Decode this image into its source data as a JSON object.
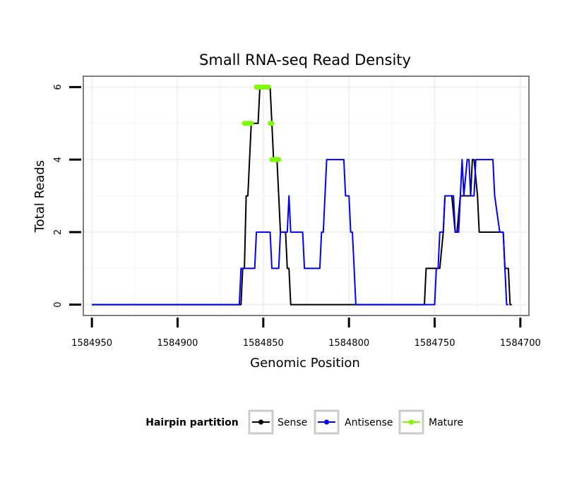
{
  "chart_data": {
    "type": "line",
    "title": "Small RNA-seq Read Density",
    "xlabel": "Genomic Position",
    "ylabel": "Total Reads",
    "x_reversed": true,
    "xlim": [
      1584955,
      1584695
    ],
    "ylim": [
      -0.3,
      6.3
    ],
    "x_ticks": [
      1584950,
      1584900,
      1584850,
      1584800,
      1584750,
      1584700
    ],
    "x_tick_labels": [
      "1584950",
      "1584900",
      "1584850",
      "1584800",
      "1584750",
      "1584700"
    ],
    "y_ticks": [
      0,
      2,
      4,
      6
    ],
    "y_tick_labels": [
      "0",
      "2",
      "4",
      "6"
    ],
    "grid": true,
    "legend": {
      "title": "Hairpin partition",
      "position": "bottom",
      "entries": [
        {
          "label": "Sense",
          "color": "#000000"
        },
        {
          "label": "Antisense",
          "color": "#0000ff"
        },
        {
          "label": "Mature",
          "color": "#7cfc00"
        }
      ]
    },
    "series": [
      {
        "name": "Sense",
        "color": "#000000",
        "points": [
          [
            1584950,
            0
          ],
          [
            1584863,
            0
          ],
          [
            1584862,
            1
          ],
          [
            1584861,
            1
          ],
          [
            1584860,
            3
          ],
          [
            1584859,
            3
          ],
          [
            1584858,
            4
          ],
          [
            1584857,
            5
          ],
          [
            1584855,
            5
          ],
          [
            1584853,
            5
          ],
          [
            1584852,
            6
          ],
          [
            1584851,
            6
          ],
          [
            1584847,
            6
          ],
          [
            1584846,
            6
          ],
          [
            1584845,
            5
          ],
          [
            1584844,
            4
          ],
          [
            1584843,
            4
          ],
          [
            1584842,
            4
          ],
          [
            1584841,
            3
          ],
          [
            1584840,
            2
          ],
          [
            1584838,
            2
          ],
          [
            1584837,
            2
          ],
          [
            1584836,
            1
          ],
          [
            1584835,
            1
          ],
          [
            1584834,
            0
          ],
          [
            1584756,
            0
          ],
          [
            1584755,
            1
          ],
          [
            1584753,
            1
          ],
          [
            1584747,
            1
          ],
          [
            1584745,
            2
          ],
          [
            1584744,
            3
          ],
          [
            1584743,
            3
          ],
          [
            1584741,
            3
          ],
          [
            1584740,
            3
          ],
          [
            1584738,
            2
          ],
          [
            1584737,
            2
          ],
          [
            1584735,
            3
          ],
          [
            1584729,
            3
          ],
          [
            1584728,
            4
          ],
          [
            1584727,
            4
          ],
          [
            1584725,
            3
          ],
          [
            1584724,
            2
          ],
          [
            1584710,
            2
          ],
          [
            1584709,
            1
          ],
          [
            1584707,
            1
          ],
          [
            1584706,
            0
          ],
          [
            1584705,
            0
          ]
        ]
      },
      {
        "name": "Antisense",
        "color": "#0000ff",
        "points": [
          [
            1584950,
            0
          ],
          [
            1584864,
            0
          ],
          [
            1584863,
            1
          ],
          [
            1584862,
            1
          ],
          [
            1584855,
            1
          ],
          [
            1584854,
            2
          ],
          [
            1584853,
            2
          ],
          [
            1584846,
            2
          ],
          [
            1584845,
            1
          ],
          [
            1584843,
            1
          ],
          [
            1584841,
            1
          ],
          [
            1584840,
            2
          ],
          [
            1584838,
            2
          ],
          [
            1584836,
            2
          ],
          [
            1584835,
            3
          ],
          [
            1584834,
            2
          ],
          [
            1584832,
            2
          ],
          [
            1584830,
            2
          ],
          [
            1584827,
            2
          ],
          [
            1584826,
            1
          ],
          [
            1584822,
            1
          ],
          [
            1584817,
            1
          ],
          [
            1584816,
            2
          ],
          [
            1584815,
            2
          ],
          [
            1584814,
            3
          ],
          [
            1584813,
            4
          ],
          [
            1584810,
            4
          ],
          [
            1584803,
            4
          ],
          [
            1584802,
            3
          ],
          [
            1584800,
            3
          ],
          [
            1584799,
            2
          ],
          [
            1584798,
            2
          ],
          [
            1584797,
            1
          ],
          [
            1584796,
            0
          ],
          [
            1584750,
            0
          ],
          [
            1584749,
            1
          ],
          [
            1584748,
            1
          ],
          [
            1584747,
            2
          ],
          [
            1584745,
            2
          ],
          [
            1584744,
            3
          ],
          [
            1584742,
            3
          ],
          [
            1584739,
            3
          ],
          [
            1584738,
            2
          ],
          [
            1584736,
            2
          ],
          [
            1584735,
            3
          ],
          [
            1584734,
            4
          ],
          [
            1584733,
            3
          ],
          [
            1584731,
            4
          ],
          [
            1584730,
            4
          ],
          [
            1584729,
            3
          ],
          [
            1584727,
            3
          ],
          [
            1584726,
            4
          ],
          [
            1584719,
            4
          ],
          [
            1584716,
            4
          ],
          [
            1584715,
            3
          ],
          [
            1584712,
            2
          ],
          [
            1584710,
            2
          ],
          [
            1584709,
            1
          ],
          [
            1584708,
            0
          ],
          [
            1584707,
            0
          ]
        ]
      },
      {
        "name": "Mature",
        "color": "#7cfc00",
        "segments": [
          {
            "x_start": 1584861,
            "x_end": 1584857,
            "y": 5
          },
          {
            "x_start": 1584854,
            "x_end": 1584847,
            "y": 6
          },
          {
            "x_start": 1584846,
            "x_end": 1584845,
            "y": 5
          },
          {
            "x_start": 1584845,
            "x_end": 1584841,
            "y": 4
          }
        ]
      }
    ]
  }
}
